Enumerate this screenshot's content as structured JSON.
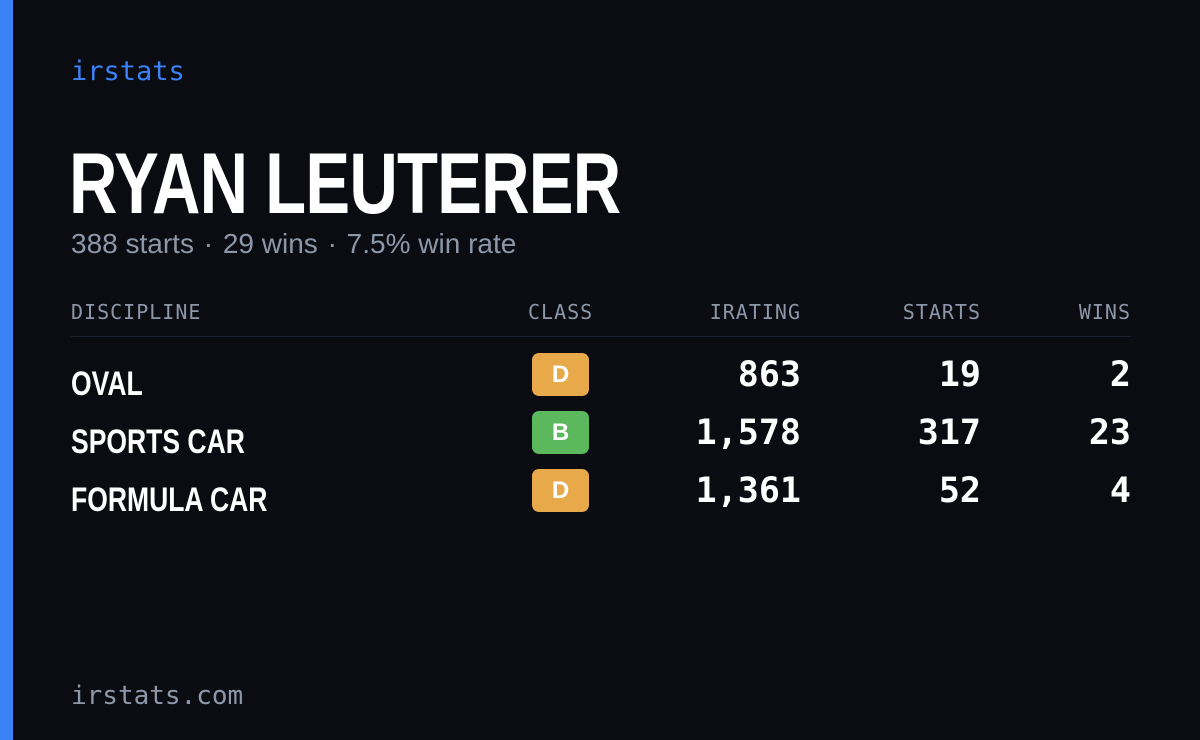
{
  "brand": "irstats",
  "driver": {
    "name": "RYAN LEUTERER",
    "summary": {
      "starts": "388 starts",
      "wins": "29 wins",
      "win_rate": "7.5% win rate",
      "separator": "·"
    }
  },
  "table": {
    "headers": {
      "discipline": "DISCIPLINE",
      "class": "CLASS",
      "irating": "IRATING",
      "starts": "STARTS",
      "wins": "WINS"
    },
    "rows": [
      {
        "discipline": "OVAL",
        "class": "D",
        "class_color": "#e8a94a",
        "irating": "863",
        "starts": "19",
        "wins": "2"
      },
      {
        "discipline": "SPORTS CAR",
        "class": "B",
        "class_color": "#5cb85c",
        "irating": "1,578",
        "starts": "317",
        "wins": "23"
      },
      {
        "discipline": "FORMULA CAR",
        "class": "D",
        "class_color": "#e8a94a",
        "irating": "1,361",
        "starts": "52",
        "wins": "4"
      }
    ]
  },
  "footer": "irstats.com",
  "colors": {
    "background": "#0a0c12",
    "accent": "#3b82f6",
    "muted_text": "#8d97a8",
    "class_d": "#e8a94a",
    "class_b": "#5cb85c"
  }
}
